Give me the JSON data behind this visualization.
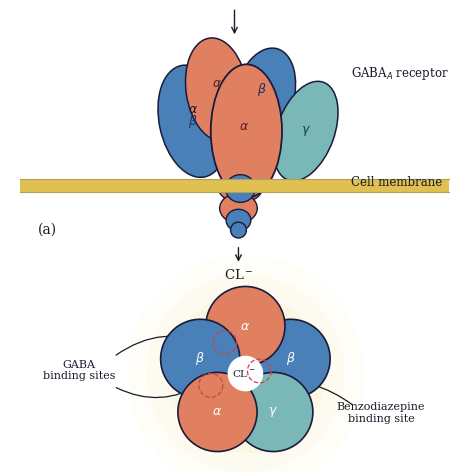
{
  "bg_color": "#ffffff",
  "membrane_color": "#dfc050",
  "membrane_top_line": "#b0a060",
  "membrane_bottom_line": "#b0a060",
  "alpha_color": "#e08060",
  "beta_color": "#4a80b8",
  "gamma_color": "#7ab8b8",
  "outline_color": "#1a1a3a",
  "text_color": "#1a1a2a",
  "arrow_color": "#1a1a2a",
  "gaba_receptor_label": "GABA$_A$ receptor",
  "cell_membrane_label": "Cell membrane",
  "cl_label": "CL$^-$",
  "gaba_binding_label": "GABA\nbinding sites",
  "benzo_binding_label": "Benzodiazepine\nbinding site",
  "a_label": "(a)",
  "glow_color": "#f8e090",
  "dashed_color": "#cc4444",
  "white_center": "#ffffff"
}
